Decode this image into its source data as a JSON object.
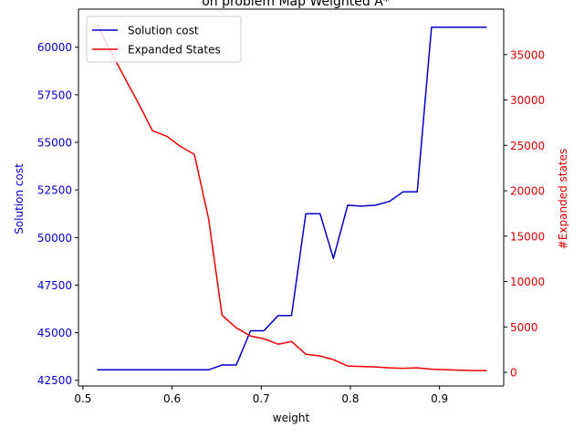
{
  "chart_data": {
    "type": "line",
    "title": "on problem Map Weighted A*",
    "xlabel": "weight",
    "ylabel_left": "Solution cost",
    "ylabel_right": "#Expanded states",
    "xlim": [
      0.495,
      0.972
    ],
    "ylim_left": [
      42200,
      62000
    ],
    "ylim_right": [
      -1500,
      40000
    ],
    "x_ticks": [
      0.5,
      0.6,
      0.7,
      0.8,
      0.9
    ],
    "y_ticks_left": [
      42500,
      45000,
      47500,
      50000,
      52500,
      55000,
      57500,
      60000
    ],
    "y_ticks_right": [
      0,
      5000,
      10000,
      15000,
      20000,
      25000,
      30000,
      35000
    ],
    "grid": false,
    "legend_position": "top-left",
    "colors": {
      "left_axis": "#0000cc",
      "right_axis": "#dd0000",
      "cost_line": "#0000cc",
      "states_line": "#ee0000"
    },
    "x": [
      0.516,
      0.532,
      0.547,
      0.563,
      0.578,
      0.594,
      0.609,
      0.625,
      0.641,
      0.656,
      0.672,
      0.688,
      0.703,
      0.719,
      0.734,
      0.75,
      0.766,
      0.781,
      0.797,
      0.812,
      0.828,
      0.844,
      0.859,
      0.875,
      0.891,
      0.906,
      0.922,
      0.938,
      0.953
    ],
    "series": [
      {
        "name": "Solution cost",
        "axis": "left",
        "values": [
          43050,
          43050,
          43050,
          43050,
          43050,
          43050,
          43050,
          43050,
          43050,
          43300,
          43300,
          45100,
          45100,
          45900,
          45900,
          51250,
          51250,
          48900,
          51700,
          51650,
          51700,
          51900,
          52400,
          52400,
          61050,
          61050,
          61050,
          61050,
          61050
        ]
      },
      {
        "name": "Expanded States",
        "axis": "right",
        "values": [
          38300,
          35200,
          32400,
          29500,
          26600,
          26000,
          24900,
          24000,
          16900,
          6300,
          4900,
          4000,
          3700,
          3100,
          3400,
          2000,
          1800,
          1400,
          700,
          650,
          600,
          500,
          450,
          500,
          350,
          300,
          250,
          200,
          200
        ]
      }
    ]
  }
}
